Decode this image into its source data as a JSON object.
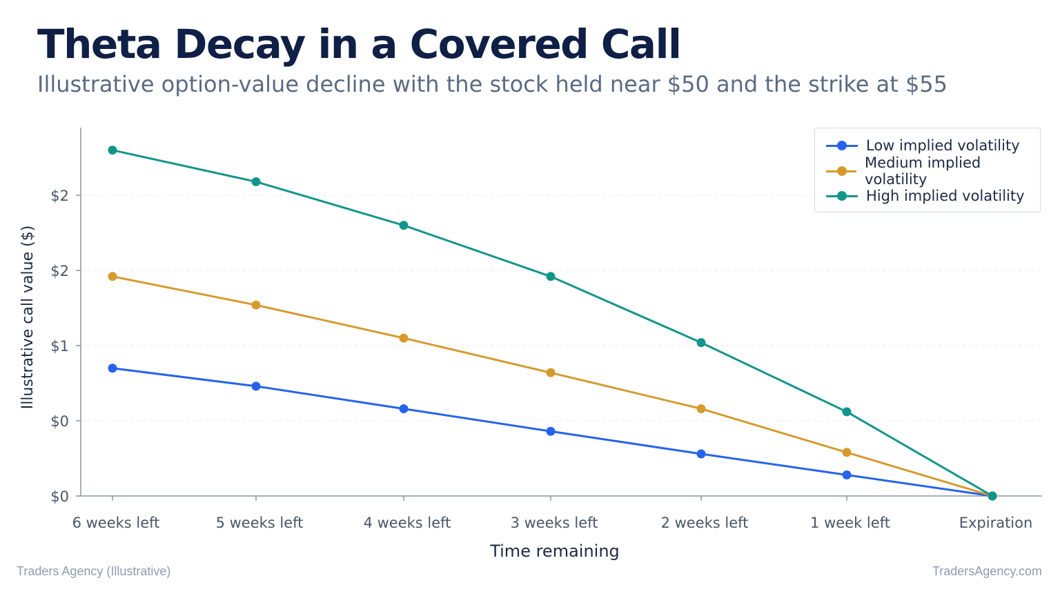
{
  "header": {
    "title": "Theta Decay in a Covered Call",
    "subtitle": "Illustrative option-value decline with the stock held near $50 and the strike at $55"
  },
  "footer": {
    "left": "Traders Agency (Illustrative)",
    "right": "TradersAgency.com"
  },
  "colors": {
    "low": "#2563eb",
    "medium": "#d69a2d",
    "high": "#12958a",
    "axis": "#8a94a6",
    "grid": "#e6e9ee",
    "tick_text": "#4a5568"
  },
  "chart_data": {
    "type": "line",
    "title": "Theta Decay in a Covered Call",
    "subtitle": "Illustrative option-value decline with the stock held near $50 and the strike at $55",
    "xlabel": "Time remaining",
    "ylabel": "Illustrative call value ($)",
    "categories": [
      "6 weeks left",
      "5 weeks left",
      "4 weeks left",
      "3 weeks left",
      "2 weeks left",
      "1 week left",
      "Expiration"
    ],
    "ylim": [
      0,
      2.45
    ],
    "y_ticks": [
      0,
      0.5,
      1.0,
      1.5,
      2.0
    ],
    "y_tick_labels": [
      "$0",
      "$0",
      "$1",
      "$2",
      "$2"
    ],
    "grid": "horizontal-dashed",
    "legend_position": "top-right",
    "series": [
      {
        "name": "Low implied volatility",
        "color_key": "low",
        "values": [
          0.85,
          0.73,
          0.58,
          0.43,
          0.28,
          0.14,
          0.0
        ]
      },
      {
        "name": "Medium implied volatility",
        "color_key": "medium",
        "values": [
          1.46,
          1.27,
          1.05,
          0.82,
          0.58,
          0.29,
          0.0
        ]
      },
      {
        "name": "High implied volatility",
        "color_key": "high",
        "values": [
          2.3,
          2.09,
          1.8,
          1.46,
          1.02,
          0.56,
          0.0
        ]
      }
    ]
  }
}
